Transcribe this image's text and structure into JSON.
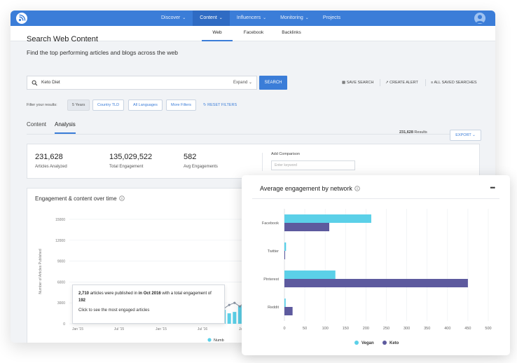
{
  "nav": {
    "items": [
      {
        "label": "Discover",
        "active": false
      },
      {
        "label": "Content",
        "active": true
      },
      {
        "label": "Influencers",
        "active": false
      },
      {
        "label": "Monitoring",
        "active": false
      },
      {
        "label": "Projects",
        "active": false
      }
    ]
  },
  "subnav": {
    "tabs": [
      {
        "label": "Web",
        "active": true
      },
      {
        "label": "Facebook",
        "active": false
      },
      {
        "label": "Backlinks",
        "active": false
      }
    ]
  },
  "page": {
    "title": "Search Web Content",
    "subtitle": "Find the top performing articles and blogs across the web"
  },
  "search": {
    "value": "Keto Diet",
    "expand_label": "Expand",
    "button_label": "SEARCH"
  },
  "actions": {
    "save_search": "SAVE SEARCH",
    "create_alert": "CREATE ALERT",
    "all_saved": "ALL SAVED SEARCHES"
  },
  "filters": {
    "label": "Filter your results:",
    "chips": [
      "5 Years",
      "Country TLD",
      "All Languages",
      "More Filters"
    ],
    "reset": "RESET FILTERS"
  },
  "view_tabs": [
    {
      "label": "Content",
      "active": false
    },
    {
      "label": "Analysis",
      "active": true
    }
  ],
  "results": {
    "count": "231,628",
    "label": "Results",
    "export_label": "EXPORT"
  },
  "summary": {
    "metrics": [
      {
        "value": "231,628",
        "label": "Articles Analyzed"
      },
      {
        "value": "135,029,522",
        "label": "Total Engagement"
      },
      {
        "value": "582",
        "label": "Avg Engagements"
      }
    ],
    "compare_label": "Add Comparison",
    "compare_placeholder": "Enter keyword"
  },
  "chart1": {
    "title": "Engagement & content over time",
    "legend_label": "Numb",
    "tooltip": {
      "count": "2,710",
      "mid1": "articles were published in",
      "month": "in Oct 2016",
      "mid2": "with a total engagement of",
      "engagement": "192",
      "cta": "Click to see the most engaged articles"
    }
  },
  "chart2": {
    "title": "Average engagement by network",
    "menu": "•••"
  },
  "colors": {
    "brand": "#3b7dd8",
    "vegan": "#5bd0e8",
    "keto": "#5d5a9e",
    "line": "#8891a0"
  },
  "chart_data": [
    {
      "type": "bar",
      "title": "Engagement & content over time",
      "ylabel": "Number of Articles Published",
      "ylim": [
        0,
        15000
      ],
      "yticks": [
        0,
        3000,
        6000,
        9000,
        12000,
        15000
      ],
      "xticks": [
        "Jan '15",
        "Jul '15",
        "Jan '15",
        "Jul '16",
        "Jan '16",
        "Jul '16"
      ],
      "series": [
        {
          "name": "Numb",
          "kind": "bar",
          "values": [
            1800,
            2000,
            1500,
            1700,
            2600,
            2900,
            2400,
            2710,
            2500,
            2200,
            2800,
            3100,
            2800
          ]
        },
        {
          "name": "",
          "kind": "line",
          "values": [
            1900,
            2200,
            2700,
            3000,
            2500,
            3200,
            4200,
            3000,
            2200,
            3400,
            3700,
            5700,
            3100
          ]
        }
      ]
    },
    {
      "type": "bar",
      "orientation": "horizontal",
      "title": "Average engagement by network",
      "categories": [
        "Facebook",
        "Twitter",
        "Pinterest",
        "Reddit"
      ],
      "xlim": [
        0,
        500
      ],
      "xticks": [
        0,
        50,
        100,
        150,
        200,
        250,
        300,
        350,
        400,
        450,
        500
      ],
      "series": [
        {
          "name": "Vegan",
          "values": [
            213,
            4,
            125,
            3
          ]
        },
        {
          "name": "Keto",
          "values": [
            110,
            1,
            450,
            20
          ]
        }
      ]
    }
  ]
}
